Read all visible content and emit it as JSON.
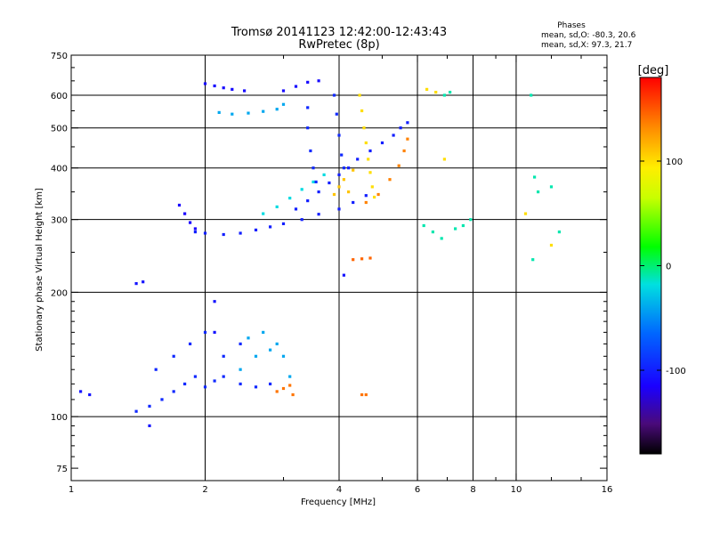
{
  "header": {
    "title_line1": "Tromsø 20141123 12:42:00-12:43:43",
    "title_line2": "RwPretec (8p)",
    "phases_title": "Phases",
    "phases_o": "mean, sd,O: -80.3, 20.6",
    "phases_x": "mean, sd,X:  97.3, 21.7"
  },
  "colorbar": {
    "unit_label": "[deg]",
    "tick_labels": [
      "100",
      "0",
      "-100"
    ],
    "tick_values": [
      100,
      0,
      -100
    ],
    "range": [
      -180,
      180
    ]
  },
  "chart_data": {
    "type": "scatter",
    "title": "",
    "xlabel": "Frequency [MHz]",
    "ylabel": "Stationary phase Virtual Height [km]",
    "xscale": "log",
    "yscale": "log",
    "xlim": [
      1,
      16
    ],
    "ylim": [
      70,
      750
    ],
    "xticks": [
      1,
      2,
      4,
      6,
      8,
      10,
      16
    ],
    "xtick_labels": [
      "1",
      "2",
      "4",
      "6",
      "8",
      "10",
      "16"
    ],
    "yticks": [
      75,
      100,
      200,
      300,
      400,
      500,
      600,
      750
    ],
    "ytick_labels": [
      "75",
      "100",
      "200",
      "300",
      "400",
      "500",
      "600",
      "750"
    ],
    "gridlines_x": [
      2,
      4,
      6,
      8,
      10
    ],
    "gridlines_y": [
      100,
      200,
      300,
      400,
      500,
      600
    ],
    "colorscale": "rainbow",
    "color_variable": "phase [deg]",
    "clusters": [
      {
        "name": "F-trace O lower",
        "phase": -100,
        "points": [
          [
            1.9,
            280
          ],
          [
            2.0,
            278
          ],
          [
            2.2,
            276
          ],
          [
            2.4,
            278
          ],
          [
            2.6,
            283
          ],
          [
            2.8,
            288
          ],
          [
            3.0,
            293
          ],
          [
            3.3,
            300
          ],
          [
            3.6,
            309
          ],
          [
            4.0,
            318
          ],
          [
            4.3,
            330
          ],
          [
            4.6,
            343
          ]
        ]
      },
      {
        "name": "F-trace start",
        "phase": -115,
        "points": [
          [
            1.75,
            325
          ],
          [
            1.8,
            310
          ],
          [
            1.85,
            295
          ],
          [
            1.9,
            285
          ]
        ]
      },
      {
        "name": "F-trace cyan branch",
        "phase": -20,
        "points": [
          [
            2.7,
            310
          ],
          [
            2.9,
            322
          ],
          [
            3.1,
            338
          ],
          [
            3.3,
            355
          ],
          [
            3.5,
            370
          ],
          [
            3.7,
            385
          ]
        ]
      },
      {
        "name": "F-trace O upper",
        "phase": -100,
        "points": [
          [
            3.2,
            318
          ],
          [
            3.4,
            333
          ],
          [
            3.6,
            350
          ],
          [
            3.8,
            368
          ],
          [
            4.0,
            385
          ],
          [
            4.2,
            400
          ],
          [
            4.4,
            420
          ],
          [
            4.7,
            440
          ],
          [
            5.0,
            460
          ],
          [
            5.3,
            480
          ],
          [
            5.5,
            500
          ],
          [
            5.7,
            515
          ]
        ]
      },
      {
        "name": "F-trace blue columns",
        "phase": -95,
        "points": [
          [
            3.4,
            560
          ],
          [
            3.4,
            500
          ],
          [
            3.45,
            440
          ],
          [
            3.5,
            400
          ],
          [
            3.55,
            370
          ],
          [
            3.9,
            600
          ],
          [
            3.95,
            540
          ],
          [
            4.0,
            480
          ],
          [
            4.05,
            430
          ],
          [
            4.1,
            400
          ]
        ]
      },
      {
        "name": "F-trace yellow column",
        "phase": 100,
        "points": [
          [
            4.45,
            600
          ],
          [
            4.5,
            550
          ],
          [
            4.55,
            500
          ],
          [
            4.6,
            460
          ],
          [
            4.65,
            420
          ],
          [
            4.7,
            390
          ],
          [
            4.75,
            360
          ],
          [
            4.8,
            340
          ]
        ]
      },
      {
        "name": "F-trace orange fringe",
        "phase": 135,
        "points": [
          [
            4.6,
            330
          ],
          [
            4.9,
            345
          ],
          [
            5.2,
            375
          ],
          [
            5.45,
            405
          ],
          [
            5.6,
            440
          ],
          [
            5.7,
            470
          ]
        ]
      },
      {
        "name": "F-trace yellow lobe",
        "phase": 110,
        "points": [
          [
            3.9,
            345
          ],
          [
            4.0,
            360
          ],
          [
            4.1,
            375
          ],
          [
            4.3,
            395
          ],
          [
            4.2,
            350
          ]
        ]
      },
      {
        "name": "Upper ribbon",
        "phase": -40,
        "points": [
          [
            2.15,
            545
          ],
          [
            2.3,
            540
          ],
          [
            2.5,
            543
          ],
          [
            2.7,
            548
          ],
          [
            2.9,
            555
          ],
          [
            3.0,
            570
          ]
        ]
      },
      {
        "name": "Top cluster",
        "phase": -110,
        "points": [
          [
            2.0,
            640
          ],
          [
            2.1,
            632
          ],
          [
            2.2,
            625
          ],
          [
            2.3,
            620
          ],
          [
            2.45,
            615
          ],
          [
            3.0,
            615
          ],
          [
            3.2,
            630
          ],
          [
            3.4,
            645
          ],
          [
            3.6,
            650
          ]
        ]
      },
      {
        "name": "E/F1 scatter low",
        "phase": -95,
        "points": [
          [
            1.4,
            103
          ],
          [
            1.5,
            106
          ],
          [
            1.6,
            110
          ],
          [
            1.7,
            115
          ],
          [
            1.8,
            120
          ],
          [
            1.9,
            125
          ],
          [
            2.0,
            118
          ],
          [
            2.1,
            122
          ],
          [
            2.2,
            125
          ],
          [
            2.4,
            120
          ],
          [
            2.6,
            118
          ],
          [
            2.8,
            120
          ],
          [
            1.55,
            130
          ],
          [
            1.7,
            140
          ],
          [
            1.85,
            150
          ],
          [
            2.0,
            160
          ],
          [
            2.2,
            140
          ],
          [
            2.4,
            150
          ]
        ]
      },
      {
        "name": "E/F1 scatter cyan",
        "phase": -40,
        "points": [
          [
            2.4,
            130
          ],
          [
            2.6,
            140
          ],
          [
            2.8,
            145
          ],
          [
            3.0,
            140
          ],
          [
            2.5,
            155
          ],
          [
            2.7,
            160
          ],
          [
            2.9,
            150
          ],
          [
            3.1,
            125
          ]
        ]
      },
      {
        "name": "Orange low patch",
        "phase": 140,
        "points": [
          [
            2.9,
            115
          ],
          [
            3.0,
            117
          ],
          [
            3.1,
            119
          ],
          [
            3.15,
            113
          ]
        ]
      },
      {
        "name": "Orange mid patch",
        "phase": 145,
        "points": [
          [
            4.3,
            240
          ],
          [
            4.5,
            241
          ],
          [
            4.7,
            242
          ]
        ]
      },
      {
        "name": "Orange patch 115",
        "phase": 140,
        "points": [
          [
            4.5,
            113
          ],
          [
            4.6,
            113
          ]
        ]
      },
      {
        "name": "Stray high freq",
        "phase": -10,
        "points": [
          [
            6.2,
            290
          ],
          [
            6.5,
            280
          ],
          [
            6.8,
            270
          ],
          [
            7.3,
            285
          ],
          [
            7.6,
            290
          ],
          [
            7.9,
            300
          ],
          [
            6.9,
            600
          ],
          [
            7.1,
            610
          ],
          [
            10.8,
            600
          ],
          [
            11.0,
            380
          ],
          [
            11.2,
            350
          ],
          [
            12.0,
            360
          ],
          [
            12.5,
            280
          ],
          [
            10.9,
            240
          ]
        ]
      },
      {
        "name": "Stray yellow",
        "phase": 100,
        "points": [
          [
            6.3,
            620
          ],
          [
            6.6,
            610
          ],
          [
            6.9,
            420
          ],
          [
            10.5,
            310
          ],
          [
            12.0,
            260
          ]
        ]
      },
      {
        "name": "Isolated blue",
        "phase": -105,
        "points": [
          [
            1.4,
            210
          ],
          [
            1.45,
            212
          ],
          [
            1.05,
            115
          ],
          [
            1.1,
            113
          ],
          [
            1.5,
            95
          ],
          [
            2.1,
            160
          ],
          [
            2.1,
            190
          ],
          [
            4.1,
            220
          ]
        ]
      }
    ]
  }
}
